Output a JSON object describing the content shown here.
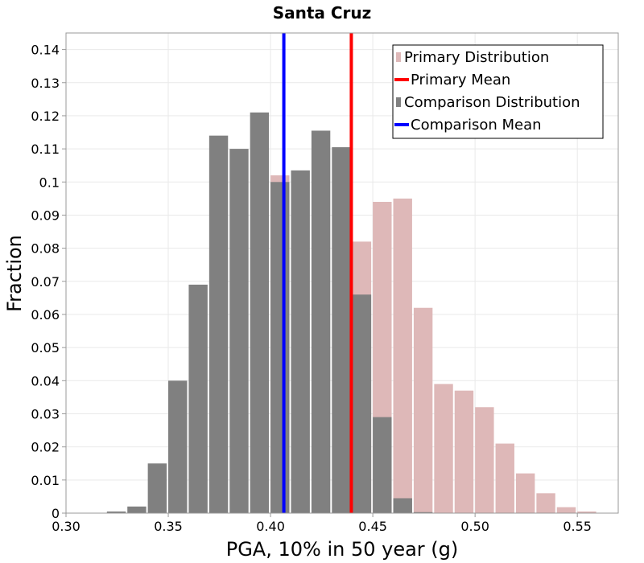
{
  "chart_data": {
    "type": "bar",
    "title": "Santa Cruz",
    "xlabel": "PGA, 10% in 50 year (g)",
    "ylabel": "Fraction",
    "xlim": [
      0.3,
      0.57
    ],
    "ylim": [
      0,
      0.145
    ],
    "bin_width": 0.01,
    "x_ticks": [
      "0.30",
      "0.35",
      "0.40",
      "0.45",
      "0.50",
      "0.55"
    ],
    "x_tick_values": [
      0.3,
      0.35,
      0.4,
      0.45,
      0.5,
      0.55
    ],
    "y_ticks": [
      "0",
      "0.01",
      "0.02",
      "0.03",
      "0.04",
      "0.05",
      "0.06",
      "0.07",
      "0.08",
      "0.09",
      "0.1",
      "0.11",
      "0.12",
      "0.13",
      "0.14"
    ],
    "y_tick_values": [
      0,
      0.01,
      0.02,
      0.03,
      0.04,
      0.05,
      0.06,
      0.07,
      0.08,
      0.09,
      0.1,
      0.11,
      0.12,
      0.13,
      0.14
    ],
    "grid": true,
    "legend_position": "top-right",
    "series": [
      {
        "name": "Primary Distribution",
        "kind": "histogram",
        "color": "#deb8b8",
        "bin_centers": [
          0.405,
          0.445,
          0.455,
          0.465,
          0.475,
          0.485,
          0.495,
          0.505,
          0.515,
          0.525,
          0.535,
          0.545,
          0.555
        ],
        "values": [
          0.102,
          0.082,
          0.094,
          0.095,
          0.062,
          0.039,
          0.037,
          0.032,
          0.021,
          0.012,
          0.006,
          0.0018,
          0.0005
        ]
      },
      {
        "name": "Primary Mean",
        "kind": "vline",
        "color": "#ff0000",
        "x": 0.4395
      },
      {
        "name": "Comparison Distribution",
        "kind": "histogram",
        "color": "#808080",
        "bin_centers": [
          0.325,
          0.335,
          0.345,
          0.355,
          0.365,
          0.375,
          0.385,
          0.395,
          0.405,
          0.415,
          0.425,
          0.435,
          0.445,
          0.455,
          0.465,
          0.475
        ],
        "values": [
          0.0005,
          0.002,
          0.015,
          0.04,
          0.069,
          0.114,
          0.11,
          0.121,
          0.1,
          0.1035,
          0.1155,
          0.1105,
          0.066,
          0.029,
          0.0045,
          0.0003
        ]
      },
      {
        "name": "Comparison Mean",
        "kind": "vline",
        "color": "#0000ff",
        "x": 0.4065
      }
    ]
  }
}
